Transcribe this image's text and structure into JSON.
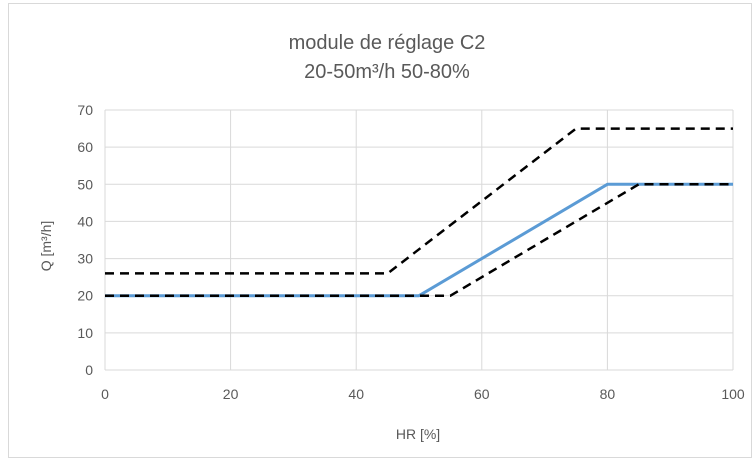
{
  "chart_data": {
    "type": "line",
    "title_lines": [
      "module de réglage C2",
      "20-50m³/h 50-80%"
    ],
    "xlabel": "HR [%]",
    "ylabel": "Q [m³/h]",
    "xlim": [
      0,
      100
    ],
    "ylim": [
      0,
      70
    ],
    "x_ticks": [
      0,
      20,
      40,
      60,
      80,
      100
    ],
    "y_ticks": [
      0,
      10,
      20,
      30,
      40,
      50,
      60,
      70
    ],
    "grid": true,
    "legend": "none",
    "series": [
      {
        "style": "solid",
        "color": "#5b9bd5",
        "x": [
          0,
          50,
          80,
          100
        ],
        "y": [
          20,
          20,
          50,
          50
        ]
      },
      {
        "style": "dashed",
        "color": "#000000",
        "x": [
          0,
          45,
          75,
          100
        ],
        "y": [
          26,
          26,
          65,
          65
        ]
      },
      {
        "style": "dashed",
        "color": "#000000",
        "x": [
          0,
          55,
          85,
          100
        ],
        "y": [
          20,
          20,
          50,
          50
        ]
      }
    ]
  }
}
